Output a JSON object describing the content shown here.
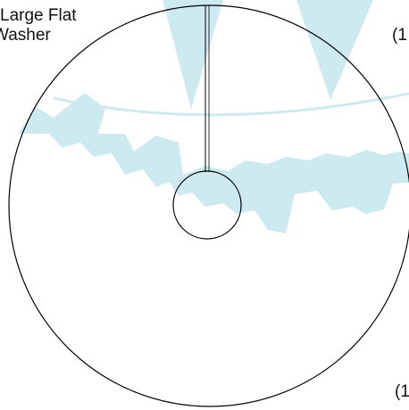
{
  "part": {
    "name_line_1": "Large Flat",
    "name_line_2": "Washer"
  },
  "callouts": {
    "top_right": "(1",
    "bottom_right": "(1"
  },
  "colors": {
    "outline": "#000000",
    "watermark": "#cdeaf1",
    "text": "#111111"
  },
  "icons": {
    "watermark": "gear-watermark-icon"
  }
}
